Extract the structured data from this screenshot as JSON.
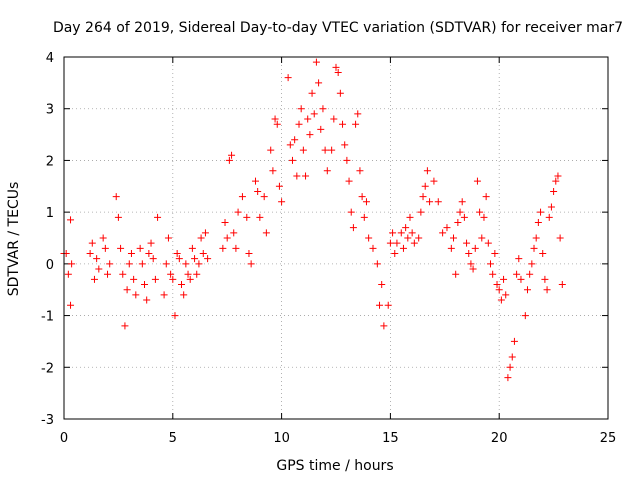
{
  "chart_data": {
    "type": "scatter",
    "title": "Day 264 of 2019, Sidereal Day-to-day VTEC variation (SDTVAR) for receiver mar7",
    "xlabel": "GPS time / hours",
    "ylabel": "SDTVAR / TECUs",
    "xlim": [
      0,
      25
    ],
    "ylim": [
      -3,
      4
    ],
    "xticks": [
      "0",
      "5",
      "10",
      "15",
      "20",
      "25"
    ],
    "yticks": [
      "-3",
      "-2",
      "-1",
      "0",
      "1",
      "2",
      "3",
      "4"
    ],
    "grid": true,
    "marker": "+",
    "color": "#ff0000",
    "series": [
      {
        "name": "SDTVAR",
        "x": [
          0.0,
          0.1,
          0.2,
          0.3,
          0.3,
          0.35,
          1.2,
          1.3,
          1.4,
          1.5,
          1.6,
          1.8,
          1.9,
          2.0,
          2.1,
          2.4,
          2.5,
          2.6,
          2.7,
          2.8,
          2.9,
          3.0,
          3.1,
          3.2,
          3.3,
          3.5,
          3.6,
          3.7,
          3.8,
          3.9,
          4.0,
          4.1,
          4.2,
          4.3,
          4.6,
          4.7,
          4.8,
          4.9,
          5.0,
          5.1,
          5.2,
          5.3,
          5.4,
          5.5,
          5.6,
          5.7,
          5.8,
          5.9,
          6.0,
          6.1,
          6.2,
          6.3,
          6.4,
          6.5,
          6.6,
          7.3,
          7.4,
          7.5,
          7.6,
          7.7,
          7.8,
          7.9,
          8.0,
          8.2,
          8.4,
          8.5,
          8.6,
          8.8,
          8.9,
          9.0,
          9.2,
          9.3,
          9.5,
          9.6,
          9.7,
          9.8,
          9.9,
          10.0,
          10.3,
          10.4,
          10.5,
          10.6,
          10.7,
          10.8,
          10.9,
          11.0,
          11.1,
          11.2,
          11.3,
          11.4,
          11.5,
          11.6,
          11.7,
          11.8,
          11.9,
          12.0,
          12.1,
          12.3,
          12.4,
          12.5,
          12.6,
          12.7,
          12.8,
          12.9,
          13.0,
          13.1,
          13.2,
          13.3,
          13.4,
          13.5,
          13.6,
          13.7,
          13.8,
          13.9,
          14.0,
          14.2,
          14.4,
          14.5,
          14.6,
          14.7,
          14.9,
          15.0,
          15.1,
          15.2,
          15.3,
          15.5,
          15.6,
          15.7,
          15.8,
          15.9,
          16.0,
          16.1,
          16.3,
          16.4,
          16.5,
          16.6,
          16.7,
          16.8,
          17.0,
          17.2,
          17.4,
          17.6,
          17.8,
          17.9,
          18.0,
          18.1,
          18.2,
          18.3,
          18.4,
          18.5,
          18.6,
          18.7,
          18.8,
          18.9,
          19.0,
          19.1,
          19.2,
          19.3,
          19.4,
          19.5,
          19.6,
          19.7,
          19.8,
          19.9,
          20.0,
          20.1,
          20.2,
          20.3,
          20.4,
          20.5,
          20.6,
          20.7,
          20.8,
          20.9,
          21.0,
          21.2,
          21.3,
          21.4,
          21.5,
          21.6,
          21.7,
          21.8,
          21.9,
          22.0,
          22.1,
          22.2,
          22.3,
          22.4,
          22.5,
          22.6,
          22.7,
          22.8,
          22.9
        ],
        "y": [
          0.2,
          0.2,
          -0.2,
          0.85,
          -0.8,
          0.0,
          0.2,
          0.4,
          -0.3,
          0.1,
          -0.1,
          0.5,
          0.3,
          -0.2,
          0.0,
          1.3,
          0.9,
          0.3,
          -0.2,
          -1.2,
          -0.5,
          0.0,
          0.2,
          -0.3,
          -0.6,
          0.3,
          0.0,
          -0.4,
          -0.7,
          0.2,
          0.4,
          0.1,
          -0.3,
          0.9,
          -0.6,
          0.0,
          0.5,
          -0.2,
          -0.3,
          -1.0,
          0.2,
          0.1,
          -0.4,
          -0.6,
          0.0,
          -0.2,
          -0.3,
          0.3,
          0.1,
          -0.2,
          0.0,
          0.5,
          0.2,
          0.6,
          0.1,
          0.3,
          0.8,
          0.5,
          2.0,
          2.1,
          0.6,
          0.3,
          1.0,
          1.3,
          0.9,
          0.2,
          0.0,
          1.6,
          1.4,
          0.9,
          1.3,
          0.6,
          2.2,
          1.8,
          2.8,
          2.7,
          1.5,
          1.2,
          3.6,
          2.3,
          2.0,
          2.4,
          1.7,
          2.7,
          3.0,
          2.2,
          1.7,
          2.8,
          2.5,
          3.3,
          2.9,
          3.9,
          3.5,
          2.6,
          3.0,
          2.2,
          1.8,
          2.2,
          2.8,
          3.8,
          3.7,
          3.3,
          2.7,
          2.3,
          2.0,
          1.6,
          1.0,
          0.7,
          2.7,
          2.9,
          1.8,
          1.3,
          0.9,
          1.2,
          0.5,
          0.3,
          0.0,
          -0.8,
          -0.4,
          -1.2,
          -0.8,
          0.4,
          0.6,
          0.2,
          0.4,
          0.6,
          0.3,
          0.7,
          0.5,
          0.9,
          0.6,
          0.4,
          0.5,
          1.0,
          1.3,
          1.5,
          1.8,
          1.2,
          1.6,
          1.2,
          0.6,
          0.7,
          0.3,
          0.5,
          -0.2,
          0.8,
          1.0,
          1.2,
          0.9,
          0.4,
          0.2,
          0.0,
          -0.1,
          0.3,
          1.6,
          1.0,
          0.5,
          0.9,
          1.3,
          0.4,
          0.0,
          -0.2,
          0.2,
          -0.4,
          -0.5,
          -0.7,
          -0.3,
          -0.6,
          -2.2,
          -2.0,
          -1.8,
          -1.5,
          -0.2,
          0.1,
          -0.3,
          -1.0,
          -0.5,
          -0.2,
          0.0,
          0.3,
          0.5,
          0.8,
          1.0,
          0.2,
          -0.3,
          -0.5,
          0.9,
          1.1,
          1.4,
          1.6,
          1.7,
          0.5,
          -0.4
        ]
      }
    ]
  }
}
